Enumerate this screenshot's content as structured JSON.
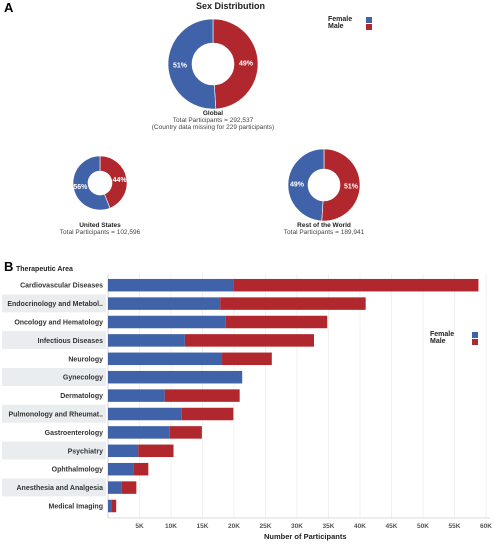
{
  "panelA": {
    "letter": "A",
    "title": "Sex Distribution",
    "legend": [
      {
        "label": "Female",
        "color": "#4062a8"
      },
      {
        "label": "Male",
        "color": "#b0282e"
      }
    ],
    "global": {
      "name": "Global",
      "total": "Total Participants = 292,537",
      "note": "(Country data missing for 229 participants)"
    },
    "us": {
      "name": "United States",
      "total": "Total Participants = 102,596"
    },
    "row": {
      "name": "Rest of the World",
      "total": "Total Participants = 189,941"
    }
  },
  "panelB": {
    "letter": "B",
    "header": "Therapeutic Area",
    "xlabel": "Number of Participants",
    "legend": [
      {
        "label": "Female",
        "color": "#4062a8"
      },
      {
        "label": "Male",
        "color": "#b0282e"
      }
    ]
  },
  "chart_data": [
    {
      "type": "pie",
      "title": "Global",
      "labels": [
        "Female",
        "Male"
      ],
      "values": [
        51,
        49
      ],
      "value_labels": [
        "51%",
        "49%"
      ],
      "colors": [
        "#4062a8",
        "#b0282e"
      ]
    },
    {
      "type": "pie",
      "title": "United States",
      "labels": [
        "Female",
        "Male"
      ],
      "values": [
        56,
        44
      ],
      "value_labels": [
        "56%",
        "44%"
      ],
      "colors": [
        "#4062a8",
        "#b0282e"
      ]
    },
    {
      "type": "pie",
      "title": "Rest of the World",
      "labels": [
        "Female",
        "Male"
      ],
      "values": [
        49,
        51
      ],
      "value_labels": [
        "49%",
        "51%"
      ],
      "colors": [
        "#4062a8",
        "#b0282e"
      ]
    },
    {
      "type": "bar",
      "orientation": "horizontal",
      "stacked": true,
      "xlabel": "Number of Participants",
      "ylabel": "Therapeutic Area",
      "xlim": [
        0,
        60000
      ],
      "xticks": [
        "5K",
        "10K",
        "15K",
        "20K",
        "25K",
        "30K",
        "35K",
        "40K",
        "45K",
        "50K",
        "55K",
        "60K"
      ],
      "categories": [
        "Cardiovascular Diseases",
        "Endocrinology and Metabol..",
        "Oncology and Hematology",
        "Infectious Diseases",
        "Neurology",
        "Gynecology",
        "Dermatology",
        "Pulmonology and Rheumat..",
        "Gastroenterology",
        "Psychiatry",
        "Ophthalmology",
        "Anesthesia and Analgesia",
        "Medical Imaging"
      ],
      "series": [
        {
          "name": "Female",
          "color": "#4062a8",
          "values": [
            19900,
            17800,
            18700,
            12200,
            18100,
            21300,
            9000,
            11700,
            9800,
            4800,
            4000,
            2100,
            500
          ]
        },
        {
          "name": "Male",
          "color": "#b0282e",
          "values": [
            38900,
            23100,
            16100,
            20500,
            7900,
            0,
            11900,
            8200,
            5100,
            5600,
            2400,
            2400,
            800
          ]
        }
      ]
    }
  ]
}
